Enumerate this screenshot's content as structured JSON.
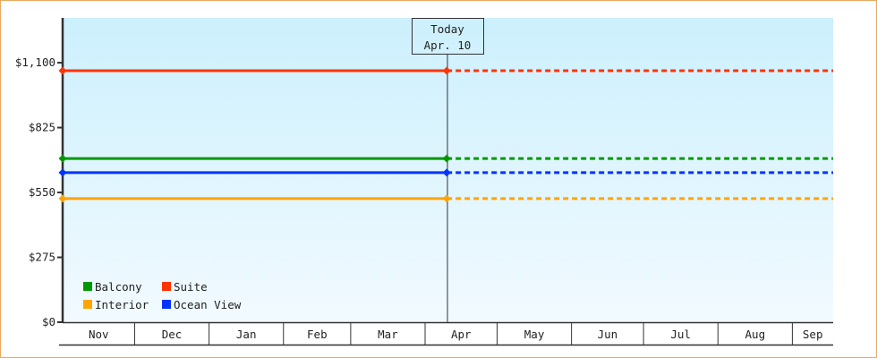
{
  "chart_data": {
    "type": "line",
    "title": "",
    "xlabel": "",
    "ylabel": "",
    "ylim": [
      0,
      1290
    ],
    "y_ticks": [
      "$0",
      "$275",
      "$550",
      "$825",
      "$1,100"
    ],
    "y_tick_values": [
      0,
      275,
      550,
      825,
      1100
    ],
    "x_ticks": [
      "Nov",
      "Dec",
      "Jan",
      "Feb",
      "Mar",
      "Apr",
      "May",
      "Jun",
      "Jul",
      "Aug",
      "Sep"
    ],
    "x_range": [
      "Nov 1",
      "Sep 17"
    ],
    "grid": false,
    "background": "gradient light blue",
    "today_marker": {
      "label": "Today",
      "date": "Apr. 10"
    },
    "legend_position": "bottom-left",
    "series": [
      {
        "name": "Balcony",
        "color": "#009900",
        "values": [
          {
            "x": "Nov 1",
            "y": 694
          },
          {
            "x": "Apr 10",
            "y": 694
          }
        ],
        "projected_to": "Sep 17"
      },
      {
        "name": "Suite",
        "color": "#ff3300",
        "values": [
          {
            "x": "Nov 1",
            "y": 1066
          },
          {
            "x": "Apr 10",
            "y": 1066
          }
        ],
        "projected_to": "Sep 17"
      },
      {
        "name": "Interior",
        "color": "#ffa500",
        "values": [
          {
            "x": "Nov 1",
            "y": 524
          },
          {
            "x": "Apr 10",
            "y": 524
          }
        ],
        "projected_to": "Sep 17"
      },
      {
        "name": "Ocean View",
        "color": "#0033ff",
        "values": [
          {
            "x": "Nov 1",
            "y": 634
          },
          {
            "x": "Apr 10",
            "y": 634
          }
        ],
        "projected_to": "Sep 17"
      }
    ]
  }
}
